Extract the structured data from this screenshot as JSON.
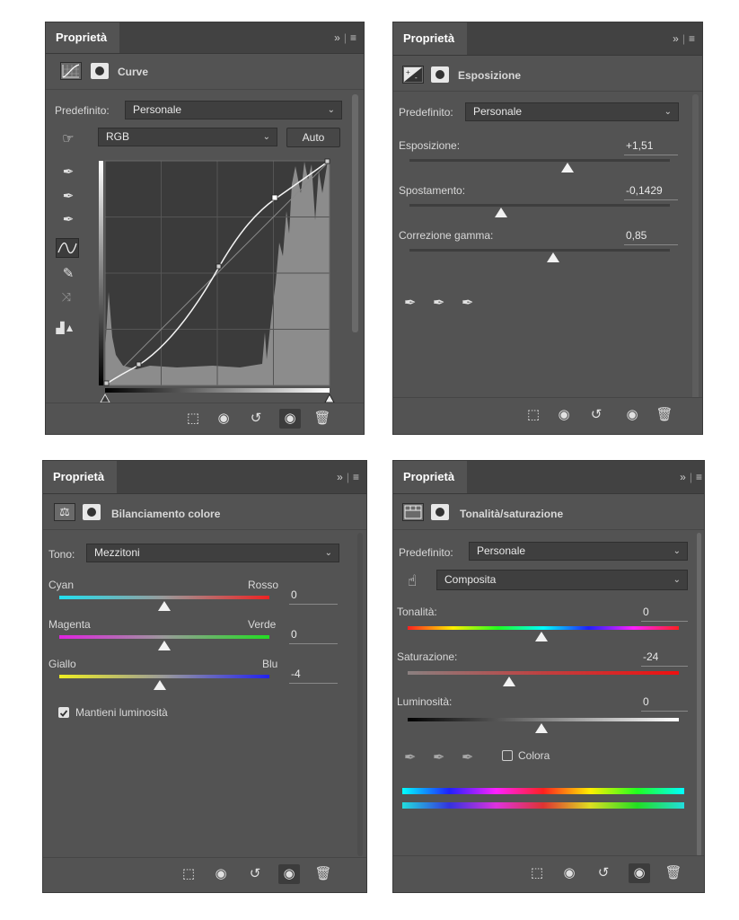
{
  "common": {
    "tab_label": "Proprietà",
    "menu_label": "»",
    "menu_icon": "≡"
  },
  "curves": {
    "title": "Curve",
    "preset_label": "Predefinito:",
    "preset_value": "Personale",
    "channel_value": "RGB",
    "auto_label": "Auto"
  },
  "exposure": {
    "title": "Esposizione",
    "preset_label": "Predefinito:",
    "preset_value": "Personale",
    "rows": [
      {
        "label": "Esposizione:",
        "value": "+1,51",
        "level": 0.6
      },
      {
        "label": "Spostamento:",
        "value": "-0,1429",
        "level": 0.35
      },
      {
        "label": "Correzione gamma:",
        "value": "0,85",
        "level": 0.55
      }
    ]
  },
  "color_balance": {
    "title": "Bilanciamento colore",
    "tone_label": "Tono:",
    "tone_value": "Mezzitoni",
    "rows": [
      {
        "left": "Cyan",
        "right": "Rosso",
        "value": "0",
        "level": 0.5
      },
      {
        "left": "Magenta",
        "right": "Verde",
        "value": "0",
        "level": 0.5
      },
      {
        "left": "Giallo",
        "right": "Blu",
        "value": "-4",
        "level": 0.48
      }
    ],
    "preserve_label": "Mantieni luminosità"
  },
  "hue_sat": {
    "title": "Tonalità/saturazione",
    "preset_label": "Predefinito:",
    "preset_value": "Personale",
    "range_value": "Composita",
    "rows": [
      {
        "label": "Tonalità:",
        "value": "0",
        "level": 0.5
      },
      {
        "label": "Saturazione:",
        "value": "-24",
        "level": 0.38
      },
      {
        "label": "Luminosità:",
        "value": "0",
        "level": 0.5
      }
    ],
    "colorize_label": "Colora"
  },
  "colors": {
    "accent_check": "#d8d8d8",
    "panel_bg": "#535353"
  }
}
